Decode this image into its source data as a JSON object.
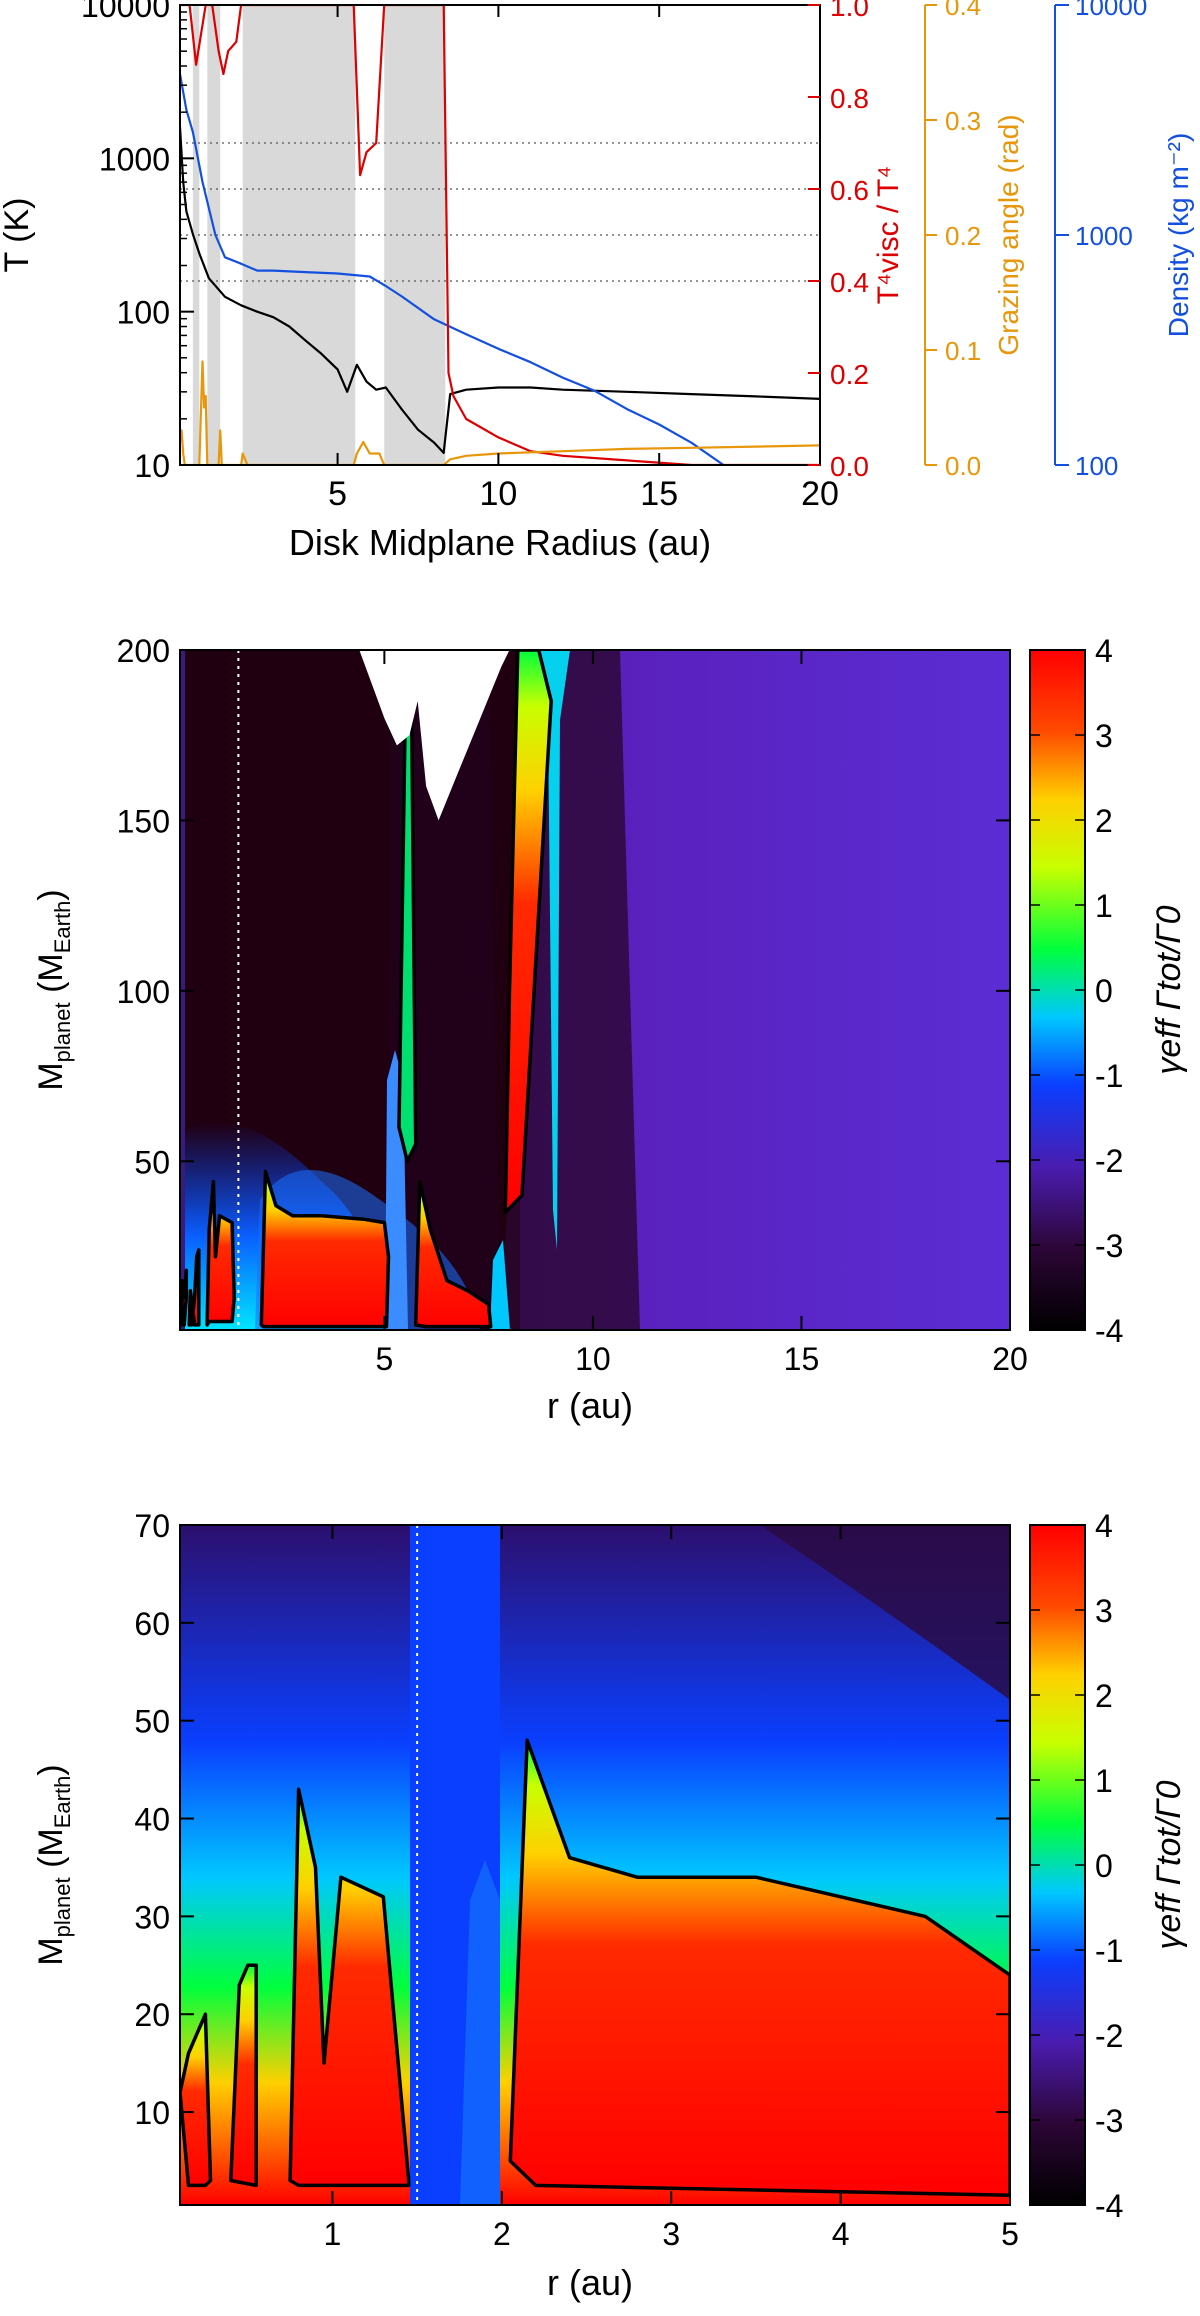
{
  "chart_data": [
    {
      "type": "line",
      "xlabel": "Disk Midplane Radius (au)",
      "xlim": [
        0.1,
        20
      ],
      "x_ticks": [
        5,
        10,
        15,
        20
      ],
      "axes": [
        {
          "id": "T",
          "label": "T (K)",
          "scale": "log",
          "range": [
            10,
            10000
          ],
          "ticks": [
            "10",
            "100",
            "1000",
            "10000"
          ],
          "color": "#000000",
          "side": "left"
        },
        {
          "id": "ratio",
          "label": "T⁴visc / T⁴",
          "range": [
            0,
            1
          ],
          "ticks": [
            "0.0",
            "0.2",
            "0.4",
            "0.6",
            "0.8",
            "1.0"
          ],
          "color": "#dd0000",
          "side": "right"
        },
        {
          "id": "angle",
          "label": "Grazing angle (rad)",
          "range": [
            0,
            0.4
          ],
          "ticks": [
            "0.0",
            "0.1",
            "0.2",
            "0.3",
            "0.4"
          ],
          "color": "#e8960a",
          "side": "right"
        },
        {
          "id": "density",
          "label": "Density (kg m⁻²)",
          "scale": "log",
          "range": [
            100,
            10000
          ],
          "ticks": [
            "100",
            "1000",
            "10000"
          ],
          "color": "#1450e0",
          "side": "right"
        }
      ],
      "ref_lines_ratio": [
        0.4,
        0.5,
        0.6,
        0.7
      ],
      "shaded_regions": [
        [
          0.5,
          0.7
        ],
        [
          0.95,
          1.35
        ],
        [
          2.05,
          5.55
        ],
        [
          6.45,
          8.35
        ]
      ],
      "series": [
        {
          "axis": "T",
          "color": "#000000",
          "x": [
            0.1,
            0.2,
            0.3,
            0.5,
            0.7,
            1.0,
            1.5,
            2.0,
            2.5,
            3.0,
            3.5,
            4.0,
            4.5,
            5.0,
            5.3,
            5.6,
            5.9,
            6.2,
            6.5,
            7.0,
            7.5,
            8.0,
            8.3,
            8.35,
            8.5,
            9.0,
            10.0,
            11.0,
            12.0,
            14.0,
            16.0,
            18.0,
            20.0
          ],
          "y": [
            1600,
            700,
            450,
            320,
            240,
            165,
            125,
            110,
            100,
            92,
            80,
            65,
            53,
            42,
            30,
            45,
            35,
            31,
            32,
            23,
            17,
            14,
            12,
            15,
            29,
            31,
            32,
            32,
            31,
            30,
            29,
            28,
            27
          ]
        },
        {
          "axis": "density",
          "color": "#1450e0",
          "x": [
            0.1,
            0.3,
            0.5,
            0.8,
            1.2,
            1.5,
            2.0,
            2.5,
            3.0,
            4.0,
            5.0,
            6.0,
            6.5,
            7.0,
            8.0,
            9.0,
            10.0,
            11.0,
            12.0,
            13.0,
            14.0,
            15.0,
            16.0,
            17.0
          ],
          "y": [
            5000,
            3500,
            2800,
            1700,
            1000,
            800,
            750,
            700,
            700,
            690,
            680,
            660,
            600,
            540,
            430,
            370,
            320,
            280,
            240,
            210,
            175,
            150,
            125,
            100
          ]
        },
        {
          "axis": "ratio",
          "color": "#dd0000",
          "x": [
            0.1,
            0.4,
            0.6,
            0.9,
            1.1,
            1.3,
            1.45,
            1.6,
            1.85,
            2.0,
            5.5,
            5.7,
            5.9,
            6.2,
            6.45,
            8.0,
            8.3,
            8.45,
            8.6,
            9.0,
            10.0,
            11.0,
            12.0,
            14.0,
            16.0,
            18.0,
            20.0
          ],
          "y": [
            1.0,
            1.0,
            0.87,
            1.0,
            1.0,
            0.9,
            0.85,
            0.9,
            0.92,
            1.0,
            1.0,
            0.63,
            0.68,
            0.7,
            1.0,
            1.0,
            1.0,
            0.2,
            0.15,
            0.1,
            0.06,
            0.03,
            0.02,
            0.01,
            0.0,
            0.0,
            0.0
          ]
        },
        {
          "axis": "angle",
          "color": "#e8960a",
          "x": [
            0.1,
            0.15,
            0.2,
            0.25,
            0.3,
            0.4,
            0.5,
            0.7,
            0.8,
            0.85,
            0.9,
            0.95,
            1.3,
            1.35,
            1.4,
            1.5,
            2.0,
            2.05,
            2.2,
            3.0,
            4.0,
            5.0,
            5.5,
            5.6,
            5.8,
            6.0,
            6.3,
            6.45,
            8.3,
            8.5,
            9.0,
            10.0,
            12.0,
            14.0,
            16.0,
            18.0,
            20.0
          ],
          "y": [
            0.02,
            0.03,
            0.01,
            0.0,
            0.0,
            0.0,
            0.0,
            0.0,
            0.09,
            0.05,
            0.06,
            0.0,
            0.0,
            0.03,
            0.0,
            0.0,
            0.0,
            0.01,
            0.0,
            0.0,
            0.0,
            0.0,
            0.0,
            0.01,
            0.02,
            0.01,
            0.01,
            0.0,
            0.0,
            0.005,
            0.008,
            0.01,
            0.012,
            0.014,
            0.015,
            0.016,
            0.017
          ]
        }
      ]
    },
    {
      "type": "heatmap",
      "xlabel": "r (au)",
      "ylabel": "Mplanet (MEarth)",
      "ylabel_main": "M",
      "ylabel_sub1": "planet",
      "ylabel_mid": " (M",
      "ylabel_sub2": "Earth",
      "ylabel_end": ")",
      "xlim": [
        0.1,
        20
      ],
      "ylim": [
        0.5,
        200
      ],
      "x_ticks": [
        "5",
        "10",
        "15",
        "20"
      ],
      "y_ticks": [
        "50",
        "100",
        "150",
        "200"
      ],
      "colorbar": {
        "label": "γeff Γtot/Γ0",
        "range": [
          -4,
          4
        ],
        "ticks": [
          "-4",
          "-3",
          "-2",
          "-1",
          "0",
          "1",
          "2",
          "3",
          "4"
        ]
      },
      "dotted_vline_x": 1.5,
      "zero_contours": [
        {
          "x": [
            0.15,
            0.2,
            0.25,
            0.25,
            0.2,
            0.15,
            0.15
          ],
          "y": [
            2,
            2,
            10,
            18,
            10,
            15,
            2
          ]
        },
        {
          "x": [
            0.32,
            0.38,
            0.45,
            0.5,
            0.55,
            0.55,
            0.45,
            0.35,
            0.32
          ],
          "y": [
            2,
            2,
            10,
            22,
            24,
            2,
            2,
            12,
            2
          ]
        },
        {
          "x": [
            0.75,
            0.8,
            0.9,
            0.95,
            1.05,
            1.35,
            1.4,
            1.35,
            0.8,
            0.75
          ],
          "y": [
            2,
            30,
            44,
            22,
            34,
            32,
            10,
            3,
            3,
            2
          ]
        },
        {
          "x": [
            2.05,
            2.15,
            2.4,
            2.8,
            3.5,
            4.5,
            5.0,
            5.1,
            5.05,
            2.1,
            2.05
          ],
          "y": [
            2,
            47,
            37,
            34,
            34,
            33,
            32,
            22,
            1.5,
            1.5,
            2
          ]
        },
        {
          "x": [
            5.75,
            5.85,
            6.1,
            6.5,
            7.0,
            7.5,
            7.55,
            6.0,
            5.75
          ],
          "y": [
            2,
            44,
            30,
            15,
            12,
            8,
            1.5,
            1.5,
            2
          ]
        },
        {
          "x": [
            5.35,
            5.5,
            5.65,
            5.75,
            5.55,
            5.35
          ],
          "y": [
            60,
            180,
            185,
            55,
            50,
            60
          ]
        },
        {
          "x": [
            7.9,
            8.0,
            8.2,
            8.7,
            9.0,
            8.3,
            7.9
          ],
          "y": [
            35,
            100,
            200,
            200,
            185,
            40,
            35
          ]
        }
      ],
      "blank_region": {
        "x": [
          4.4,
          5.0,
          5.3,
          5.6,
          5.8,
          6.0,
          6.3,
          6.8,
          7.3,
          7.8,
          8.0,
          8.0,
          4.4
        ],
        "y": [
          200,
          180,
          172,
          175,
          185,
          160,
          150,
          165,
          180,
          195,
          200,
          200,
          200
        ]
      }
    },
    {
      "type": "heatmap",
      "xlabel": "r (au)",
      "ylabel": "Mplanet (MEarth)",
      "ylabel_main": "M",
      "ylabel_sub1": "planet",
      "ylabel_mid": " (M",
      "ylabel_sub2": "Earth",
      "ylabel_end": ")",
      "xlim": [
        0.1,
        5
      ],
      "ylim": [
        0.5,
        70
      ],
      "x_ticks": [
        "1",
        "2",
        "3",
        "4",
        "5"
      ],
      "y_ticks": [
        "10",
        "20",
        "30",
        "40",
        "50",
        "60",
        "70"
      ],
      "colorbar": {
        "label": "γeff Γtot/Γ0",
        "range": [
          -4,
          4
        ],
        "ticks": [
          "-4",
          "-3",
          "-2",
          "-1",
          "0",
          "1",
          "2",
          "3",
          "4"
        ]
      },
      "dotted_vline_x": 1.5,
      "zero_contours": [
        {
          "x": [
            0.1,
            0.15,
            0.25,
            0.28,
            0.25,
            0.15,
            0.1
          ],
          "y": [
            12,
            16,
            20,
            3,
            2.5,
            2.5,
            12
          ]
        },
        {
          "x": [
            0.4,
            0.45,
            0.5,
            0.55,
            0.55,
            0.4
          ],
          "y": [
            3,
            23,
            25,
            25,
            2.5,
            3
          ]
        },
        {
          "x": [
            0.75,
            0.8,
            0.9,
            0.95,
            1.05,
            1.3,
            1.45,
            1.45,
            0.8,
            0.75
          ],
          "y": [
            3,
            43,
            35,
            15,
            34,
            32,
            3,
            2.5,
            2.5,
            3
          ]
        },
        {
          "x": [
            2.05,
            2.15,
            2.4,
            2.8,
            3.5,
            4.5,
            5.0,
            5.0,
            2.2,
            2.05
          ],
          "y": [
            5,
            48,
            36,
            34,
            34,
            30,
            24,
            1.5,
            2.5,
            5
          ]
        }
      ]
    }
  ]
}
